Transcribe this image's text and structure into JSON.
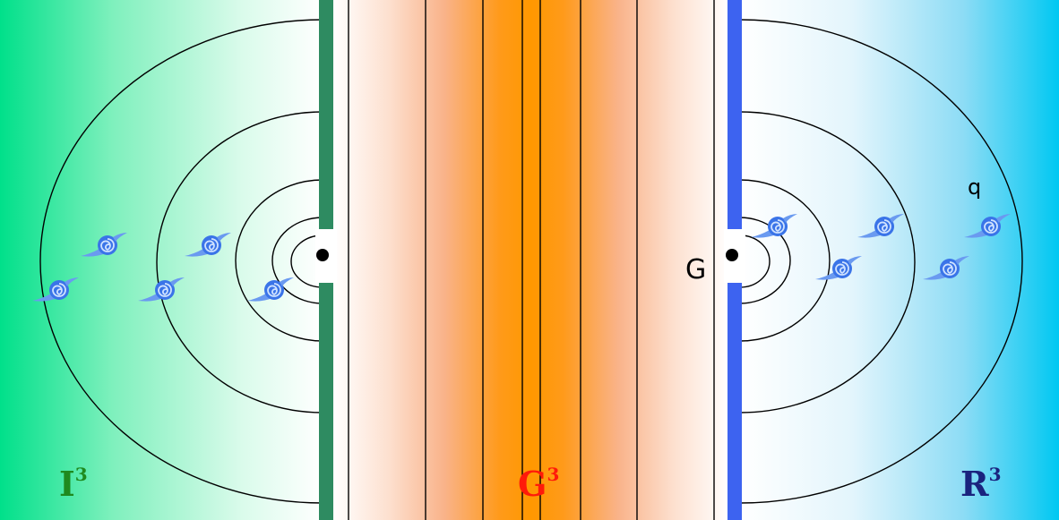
{
  "labels": {
    "left_region": "I",
    "middle_region": "G",
    "right_region": "R",
    "exponent": "3",
    "gate_point": "G",
    "particle_label": "q"
  },
  "colors": {
    "left_gradient_start": "#00e08a",
    "middle_band": "#ff9800",
    "right_gradient_end": "#00c8f2",
    "left_wall": "#2e8b61",
    "right_wall": "#3d63f0",
    "left_label": "#1f8a1f",
    "middle_label": "#ff1a0a",
    "right_label": "#1a237e",
    "particle": "#3a74e8",
    "contour": "#000000"
  },
  "icons": {
    "particle": "vortex-particle-icon",
    "center_point": "center-dot-icon"
  }
}
